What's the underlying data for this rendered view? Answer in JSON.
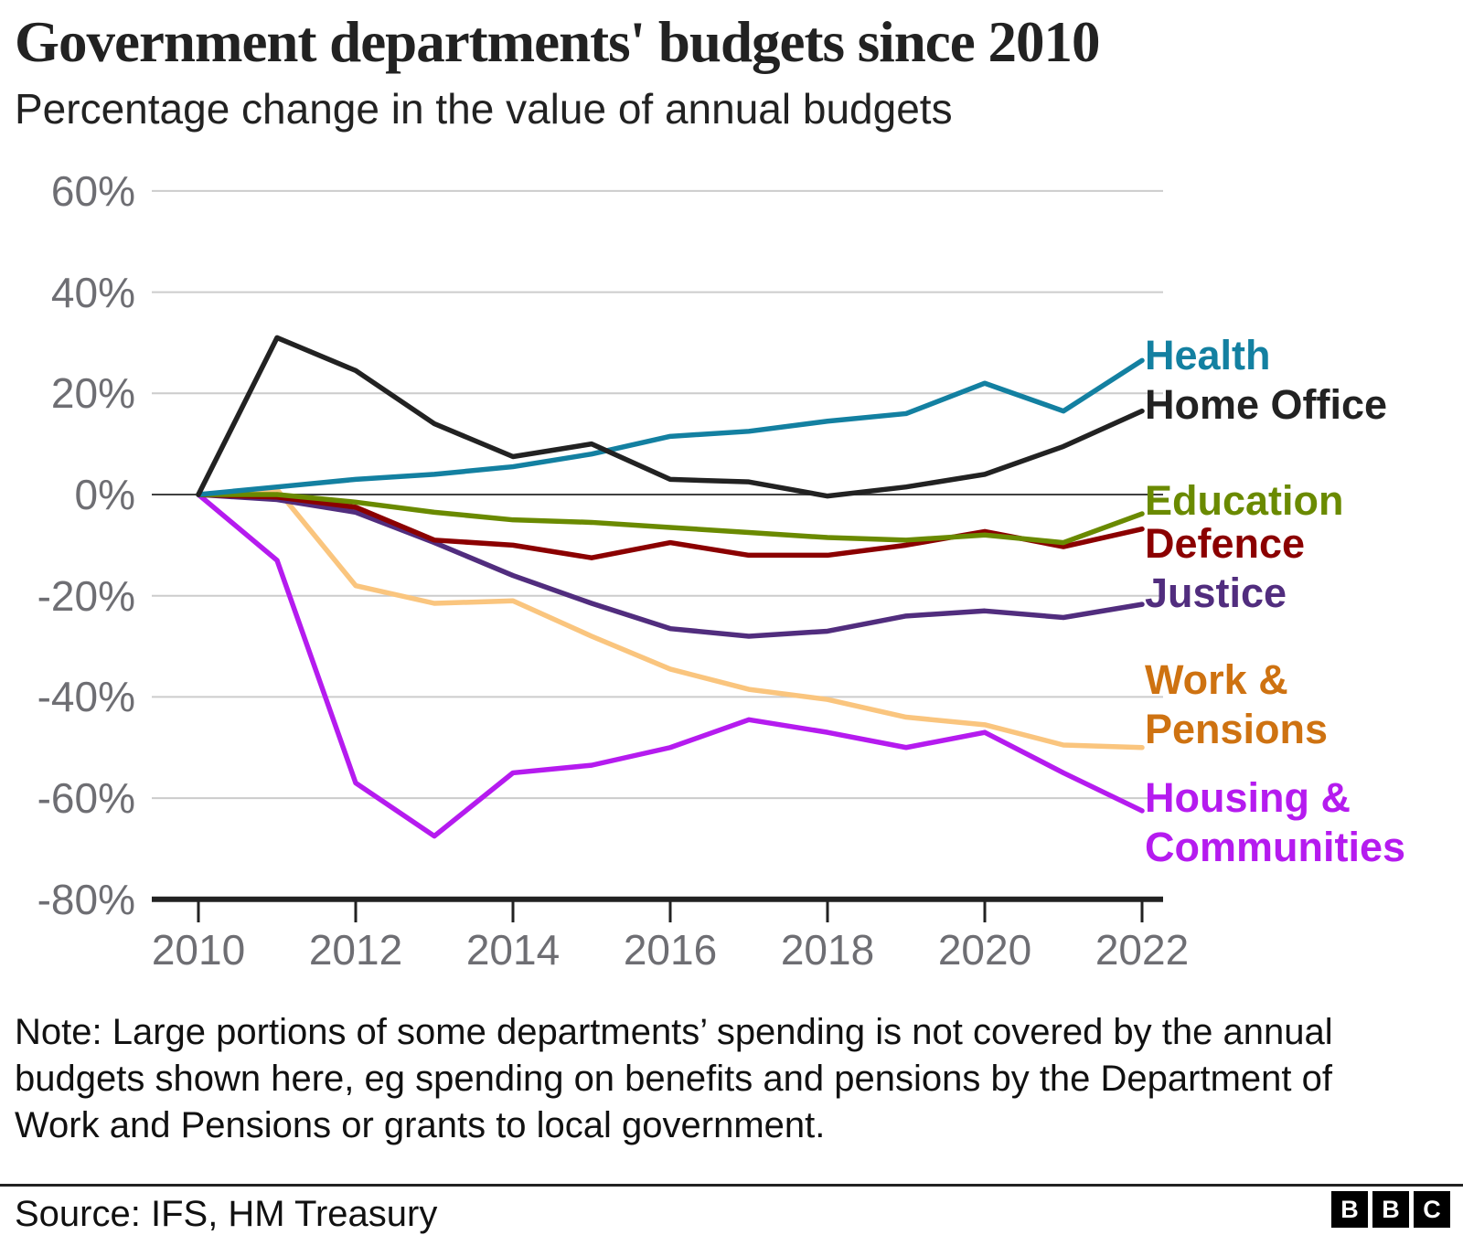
{
  "header": {
    "title": "Government departments' budgets since 2010",
    "subtitle": "Percentage change in the value of annual budgets"
  },
  "note": {
    "lines": [
      "Note: Large portions of some departments’ spending is not covered by the annual",
      "budgets shown here, eg spending on benefits and pensions by the Department of",
      "Work and Pensions or grants to local government."
    ]
  },
  "footer": {
    "source": "Source: IFS, HM Treasury",
    "logo_letters": [
      "B",
      "B",
      "C"
    ]
  },
  "colors": {
    "grid": "#CCCCCC",
    "zero_line": "#404040",
    "axis": "#222222",
    "tick_label": "#6E6E73",
    "text": "#222222"
  },
  "chart_data": {
    "type": "line",
    "title": "Government departments' budgets since 2010",
    "subtitle": "Percentage change in the value of annual budgets",
    "xlabel": "",
    "ylabel": "Percentage change",
    "x": [
      2010,
      2011,
      2012,
      2013,
      2014,
      2015,
      2016,
      2017,
      2018,
      2019,
      2020,
      2021,
      2022
    ],
    "xlim": [
      2010,
      2022
    ],
    "ylim": [
      -80,
      60
    ],
    "grid": true,
    "legend_position": "right",
    "xticks": [
      {
        "year": 2010,
        "label": "2010"
      },
      {
        "year": 2012,
        "label": "2012"
      },
      {
        "year": 2014,
        "label": "2014"
      },
      {
        "year": 2016,
        "label": "2016"
      },
      {
        "year": 2018,
        "label": "2018"
      },
      {
        "year": 2020,
        "label": "2020"
      },
      {
        "year": 2022,
        "label": "2022"
      }
    ],
    "yticks": [
      {
        "value": 60,
        "label": "60%"
      },
      {
        "value": 40,
        "label": "40%"
      },
      {
        "value": 20,
        "label": "20%"
      },
      {
        "value": 0,
        "label": "0%"
      },
      {
        "value": -20,
        "label": "-20%"
      },
      {
        "value": -40,
        "label": "-40%"
      },
      {
        "value": -60,
        "label": "-60%"
      },
      {
        "value": -80,
        "label": "-80%"
      }
    ],
    "series": [
      {
        "id": "health",
        "name": "Health",
        "label_lines": [
          "Health"
        ],
        "color": "#1380A1",
        "values": [
          0,
          1.5,
          3,
          4,
          5.5,
          8,
          11.5,
          12.5,
          14.5,
          16,
          22,
          16.5,
          26.5
        ]
      },
      {
        "id": "home_office",
        "name": "Home Office",
        "label_lines": [
          "Home Office"
        ],
        "color": "#222222",
        "values": [
          0,
          31,
          24.5,
          14,
          7.5,
          10,
          3,
          2.5,
          -0.3,
          1.5,
          4,
          9.5,
          16.5
        ]
      },
      {
        "id": "education",
        "name": "Education",
        "label_lines": [
          "Education"
        ],
        "color": "#6A8A00",
        "values": [
          0,
          0,
          -1.5,
          -3.5,
          -5,
          -5.5,
          -6.5,
          -7.5,
          -8.5,
          -9,
          -8,
          -9.5,
          -3.8
        ]
      },
      {
        "id": "defence",
        "name": "Defence",
        "label_lines": [
          "Defence"
        ],
        "color": "#8B0000",
        "values": [
          0,
          -0.5,
          -2.5,
          -9,
          -10,
          -12.5,
          -9.5,
          -12,
          -12,
          -10,
          -7.3,
          -10.3,
          -6.8
        ]
      },
      {
        "id": "justice",
        "name": "Justice",
        "label_lines": [
          "Justice"
        ],
        "color": "#512D7E",
        "values": [
          0,
          -1,
          -3.5,
          -9.5,
          -16,
          -21.5,
          -26.5,
          -28,
          -27,
          -24,
          -23,
          -24.3,
          -21.7
        ]
      },
      {
        "id": "work_pensions",
        "name": "Work & Pensions",
        "label_lines": [
          "Work &",
          "Pensions"
        ],
        "color": "#FAC57E",
        "label_color": "#CE7211",
        "values": [
          0,
          1,
          -18,
          -21.5,
          -21,
          -28,
          -34.5,
          -38.5,
          -40.5,
          -44,
          -45.5,
          -49.5,
          -50
        ]
      },
      {
        "id": "housing_communities",
        "name": "Housing & Communities",
        "label_lines": [
          "Housing &",
          "Communities"
        ],
        "color": "#B51BEF",
        "label_color": "#B51BEF",
        "values": [
          0,
          -13,
          -57,
          -67.5,
          -55,
          -53.5,
          -50,
          -44.5,
          -47,
          -50,
          -47,
          -55,
          -62.5
        ]
      }
    ]
  }
}
